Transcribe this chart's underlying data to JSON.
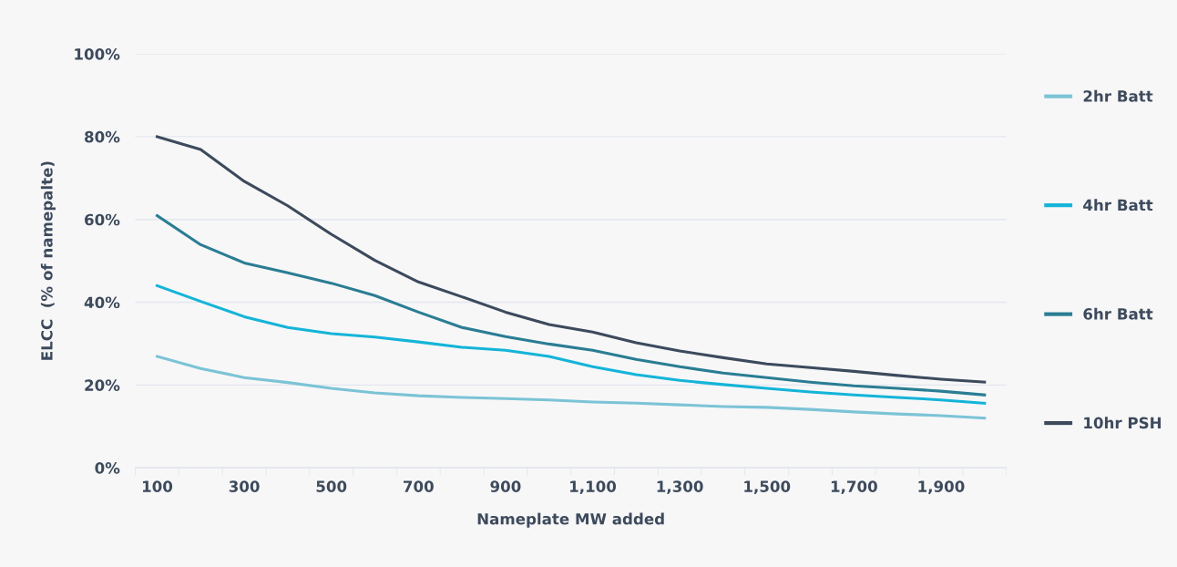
{
  "chart_data": {
    "type": "line",
    "xlabel": "Nameplate MW added",
    "ylabel": "ELCC  (% of namepalte)",
    "categories": [
      "100",
      null,
      "300",
      null,
      "500",
      null,
      "700",
      null,
      "900",
      null,
      "1,100",
      null,
      "1,300",
      null,
      "1,500",
      null,
      "1,700",
      null,
      "1,900",
      null
    ],
    "series": [
      {
        "name": "2hr Batt",
        "color": "#7cc3d6",
        "values": [
          26.9,
          24.0,
          21.8,
          20.6,
          19.2,
          18.1,
          17.4,
          17.0,
          16.7,
          16.4,
          15.9,
          15.6,
          15.2,
          14.8,
          14.6,
          14.1,
          13.5,
          13.0,
          12.6,
          12.0
        ]
      },
      {
        "name": "4hr Batt",
        "color": "#14b4d8",
        "values": [
          44.0,
          40.2,
          36.5,
          33.9,
          32.4,
          31.6,
          30.4,
          29.1,
          28.4,
          26.9,
          24.4,
          22.5,
          21.1,
          20.1,
          19.2,
          18.3,
          17.6,
          17.0,
          16.4,
          15.6
        ]
      },
      {
        "name": "6hr Batt",
        "color": "#2a7d93",
        "values": [
          60.9,
          53.9,
          49.5,
          47.1,
          44.6,
          41.6,
          37.6,
          33.9,
          31.7,
          29.9,
          28.4,
          26.2,
          24.4,
          22.9,
          21.8,
          20.7,
          19.8,
          19.2,
          18.5,
          17.6
        ]
      },
      {
        "name": "10hr PSH",
        "color": "#3c4a5c",
        "values": [
          80.0,
          76.9,
          69.2,
          63.3,
          56.4,
          50.1,
          44.9,
          41.3,
          37.6,
          34.6,
          32.8,
          30.2,
          28.2,
          26.6,
          25.1,
          24.2,
          23.3,
          22.3,
          21.4,
          20.7
        ]
      }
    ],
    "ylim": [
      0,
      100
    ],
    "yticks": [
      {
        "value": 0,
        "label": "0%"
      },
      {
        "value": 20,
        "label": "20%"
      },
      {
        "value": 40,
        "label": "40%"
      },
      {
        "value": 60,
        "label": "60%"
      },
      {
        "value": 80,
        "label": "80%"
      },
      {
        "value": 100,
        "label": "100%"
      }
    ],
    "grid": "y",
    "legend": "right",
    "marker": "none",
    "line_style": "solid"
  }
}
